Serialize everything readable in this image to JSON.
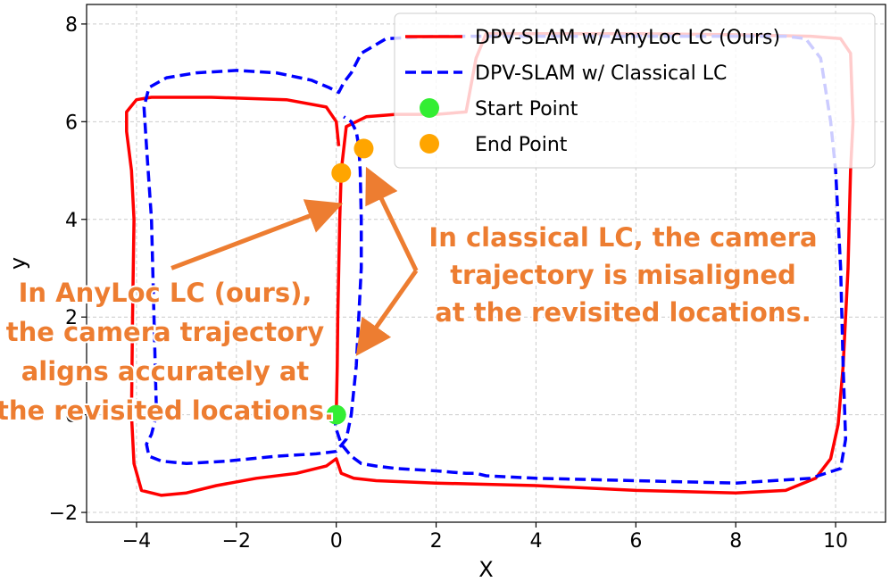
{
  "chart_data": {
    "type": "line",
    "xlabel": "X",
    "ylabel": "y",
    "xlim": [
      -5.0,
      11.0
    ],
    "ylim": [
      -2.2,
      8.4
    ],
    "xticks": [
      -4,
      -2,
      0,
      2,
      4,
      6,
      8,
      10
    ],
    "yticks": [
      -2,
      0,
      2,
      4,
      6,
      8
    ],
    "xtick_labels": [
      "−4",
      "−2",
      "0",
      "2",
      "4",
      "6",
      "8",
      "10"
    ],
    "ytick_labels": [
      "−2",
      "0",
      "2",
      "4",
      "6",
      "8"
    ],
    "grid": true,
    "legend_position": "top-right",
    "series": [
      {
        "name": "DPV-SLAM w/ AnyLoc LC (Ours)",
        "color": "#FF0000",
        "style": "solid",
        "x": [
          0.0,
          0.02,
          0.03,
          0.05,
          0.07,
          0.1,
          0.2,
          0.6,
          1.2,
          2.0,
          2.6,
          2.8,
          3.0,
          4.0,
          6.0,
          8.0,
          9.5,
          10.1,
          10.3,
          10.35,
          10.3,
          10.25,
          10.15,
          10.05,
          9.9,
          9.6,
          9.0,
          8.0,
          6.0,
          4.0,
          2.0,
          0.8,
          0.35,
          0.1,
          0.0,
          -0.2,
          -0.8,
          -1.6,
          -2.4,
          -3.0,
          -3.5,
          -3.9,
          -4.05,
          -4.1,
          -4.08,
          -4.05,
          -4.1,
          -4.2,
          -4.2,
          -4.0,
          -3.7,
          -3.3,
          -2.5,
          -1.0,
          -0.2,
          0.0,
          0.05
        ],
        "y": [
          0.0,
          1.0,
          2.0,
          3.0,
          4.0,
          5.0,
          5.9,
          6.1,
          6.15,
          6.15,
          6.2,
          7.3,
          7.8,
          7.8,
          7.8,
          7.78,
          7.75,
          7.7,
          7.4,
          6.0,
          5.0,
          3.0,
          1.0,
          -0.2,
          -0.9,
          -1.3,
          -1.55,
          -1.6,
          -1.55,
          -1.45,
          -1.4,
          -1.35,
          -1.3,
          -1.2,
          -0.9,
          -1.05,
          -1.2,
          -1.3,
          -1.45,
          -1.6,
          -1.65,
          -1.55,
          -1.0,
          0.0,
          2.0,
          4.0,
          5.0,
          5.8,
          6.2,
          6.45,
          6.5,
          6.5,
          6.5,
          6.45,
          6.3,
          6.0,
          5.5
        ]
      },
      {
        "name": "DPV-SLAM w/ Classical LC",
        "color": "#0000FF",
        "style": "dashed",
        "x": [
          -0.05,
          0.0,
          0.1,
          0.3,
          0.5,
          0.8,
          1.2,
          2.0,
          2.6,
          2.8,
          3.0,
          4.0,
          6.0,
          8.0,
          9.5,
          10.1,
          10.2,
          10.15,
          10.1,
          10.0,
          9.9,
          9.7,
          9.4,
          9.0,
          8.0,
          6.0,
          4.0,
          2.0,
          1.0,
          0.5,
          0.3,
          0.15,
          0.05,
          -0.15,
          -0.5,
          -1.2,
          -2.0,
          -2.8,
          -3.4,
          -3.75,
          -3.85,
          -3.8,
          -3.7,
          -3.65,
          -3.6,
          -3.7,
          -3.8,
          -3.75,
          -3.5,
          -3.0,
          -2.2,
          -1.2,
          -0.4,
          0.0,
          0.2,
          0.3,
          0.4,
          0.45,
          0.5,
          0.5,
          0.48,
          0.45,
          0.4,
          0.3,
          0.15
        ],
        "y": [
          0.0,
          -0.3,
          -0.6,
          -0.85,
          -1.0,
          -1.05,
          -1.1,
          -1.15,
          -1.2,
          -1.2,
          -1.25,
          -1.3,
          -1.35,
          -1.4,
          -1.3,
          -1.1,
          -0.5,
          1.0,
          3.0,
          5.0,
          6.0,
          7.3,
          7.7,
          7.75,
          7.75,
          7.75,
          7.75,
          7.75,
          7.7,
          7.4,
          7.0,
          6.8,
          6.6,
          6.7,
          6.85,
          7.0,
          7.05,
          7.0,
          6.9,
          6.7,
          6.3,
          5.5,
          4.0,
          2.0,
          0.0,
          -0.4,
          -0.6,
          -0.85,
          -0.95,
          -1.0,
          -0.95,
          -0.85,
          -0.8,
          -0.75,
          -0.5,
          0.0,
          1.0,
          2.0,
          3.0,
          4.0,
          5.0,
          5.5,
          5.8,
          6.0,
          6.1
        ]
      }
    ],
    "points": [
      {
        "name": "Start Point",
        "color": "#33EE33",
        "x": 0.0,
        "y": 0.0
      },
      {
        "name": "End Point",
        "color": "#FFA500",
        "x": 0.1,
        "y": 4.95
      },
      {
        "name": "End Point",
        "color": "#FFA500",
        "x": 0.55,
        "y": 5.45
      }
    ],
    "annotations": [
      {
        "lines": [
          "In AnyLoc LC (ours),",
          "the camera trajectory",
          "aligns accurately at",
          "the revisited locations."
        ],
        "color": "#ED7D31",
        "arrow_from": [
          -3.3,
          3.0
        ],
        "arrow_to": [
          -0.2,
          4.2
        ]
      },
      {
        "lines": [
          "In classical LC, the camera",
          "trajectory is misaligned",
          "at the revisited locations."
        ],
        "color": "#ED7D31",
        "arrows_from": [
          [
            1.6,
            2.95
          ],
          [
            1.6,
            2.95
          ]
        ],
        "arrows_to": [
          [
            0.75,
            4.75
          ],
          [
            0.6,
            1.5
          ]
        ]
      }
    ]
  }
}
